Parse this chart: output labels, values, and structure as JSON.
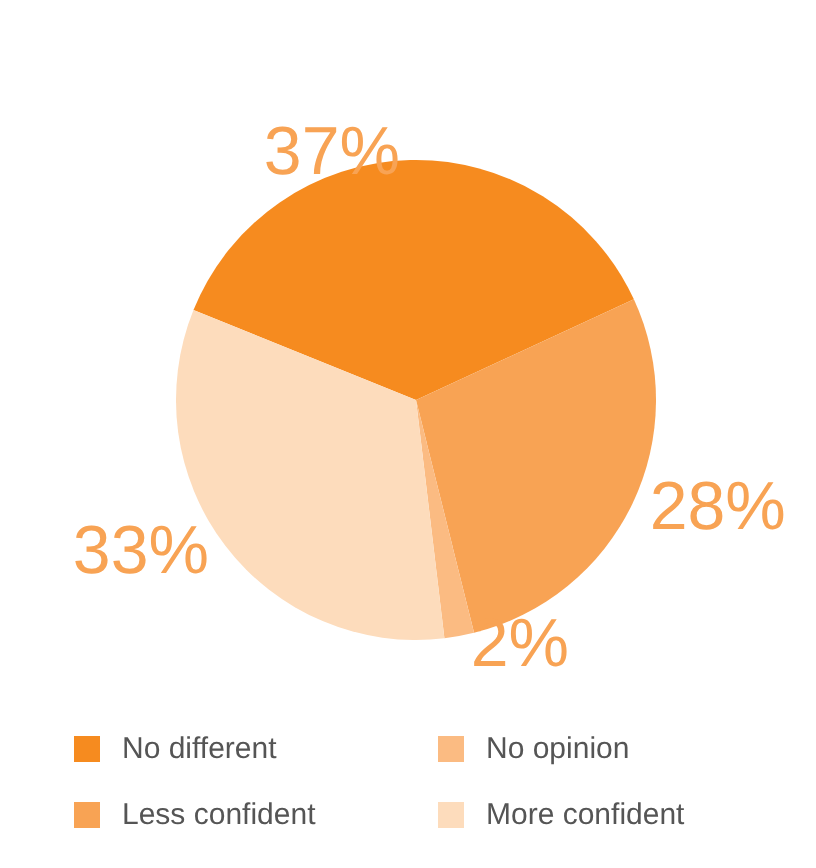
{
  "chart_data": {
    "type": "pie",
    "categories": [
      "No different",
      "Less confident",
      "No opinion",
      "More confident"
    ],
    "values": [
      37,
      28,
      2,
      33
    ],
    "colors": [
      "#f68b1f",
      "#f8a354",
      "#fbbb82",
      "#fddcbc"
    ],
    "value_labels": [
      "37%",
      "28%",
      "2%",
      "33%"
    ],
    "legend": "bottom"
  }
}
